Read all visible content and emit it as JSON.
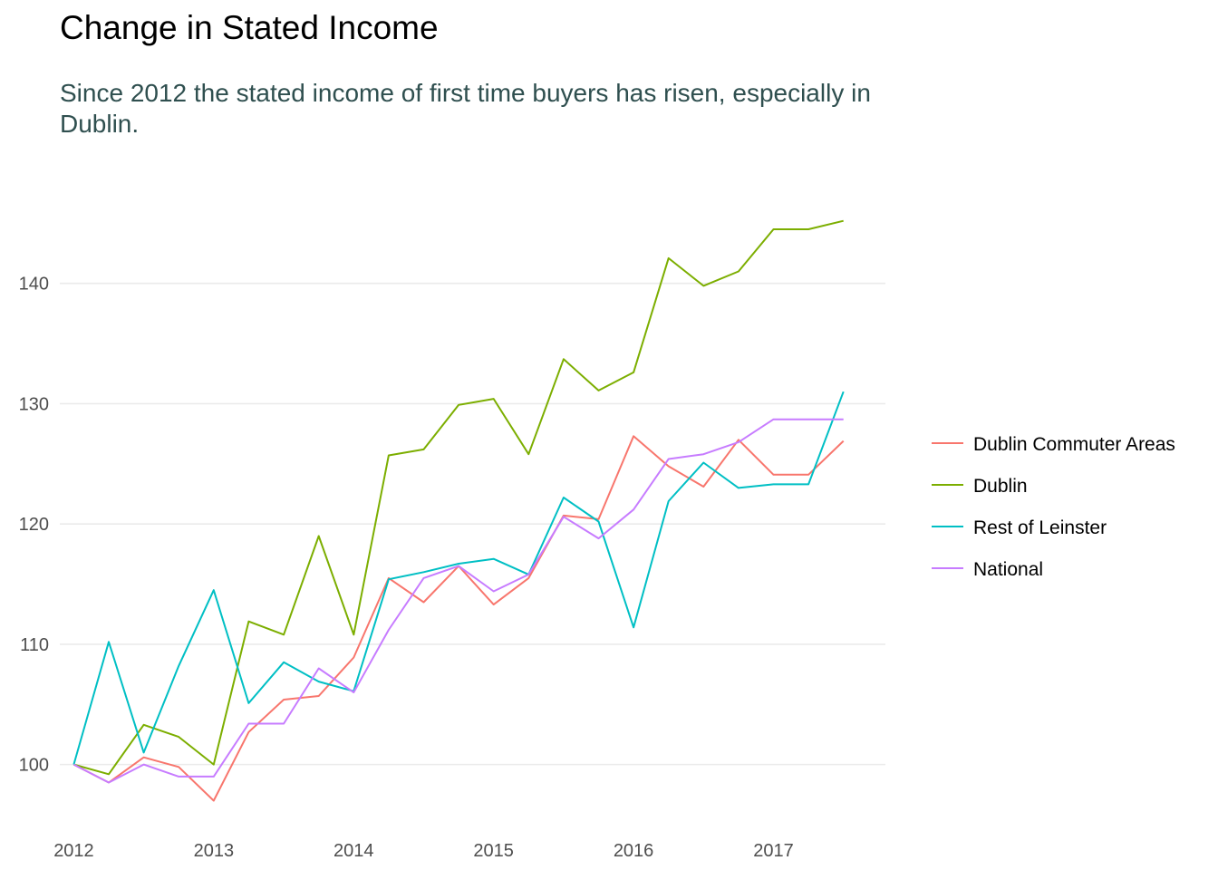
{
  "chart_data": {
    "type": "line",
    "title": "Change in Stated Income",
    "subtitle": "Since 2012 the stated income of first time buyers has risen, especially in Dublin.",
    "xlabel": "",
    "ylabel": "",
    "xlim": [
      2011.9,
      2017.8
    ],
    "ylim": [
      95,
      150
    ],
    "x_ticks": [
      2012,
      2013,
      2014,
      2015,
      2016,
      2017
    ],
    "y_ticks": [
      100,
      110,
      120,
      130,
      140
    ],
    "grid": "horizontal",
    "legend": "right",
    "x": [
      2012.0,
      2012.25,
      2012.5,
      2012.75,
      2013.0,
      2013.25,
      2013.5,
      2013.75,
      2014.0,
      2014.25,
      2014.5,
      2014.75,
      2015.0,
      2015.25,
      2015.5,
      2015.75,
      2016.0,
      2016.25,
      2016.5,
      2016.75,
      2017.0,
      2017.25,
      2017.5
    ],
    "series": [
      {
        "name": "Dublin Commuter Areas",
        "color": "#F8766D",
        "values": [
          100,
          98.5,
          100.6,
          99.8,
          97.0,
          102.7,
          105.4,
          105.7,
          108.9,
          115.5,
          113.5,
          116.5,
          113.3,
          115.5,
          120.7,
          120.4,
          127.3,
          124.8,
          123.1,
          127.0,
          124.1,
          124.1,
          126.9
        ]
      },
      {
        "name": "Dublin",
        "color": "#7CAE00",
        "values": [
          100,
          99.2,
          103.3,
          102.3,
          100.0,
          111.9,
          110.8,
          119.0,
          110.8,
          125.7,
          126.2,
          129.9,
          130.4,
          125.8,
          133.7,
          131.1,
          132.6,
          142.1,
          139.8,
          141.0,
          144.5,
          144.5,
          145.2
        ]
      },
      {
        "name": "Rest of Leinster",
        "color": "#00BFC4",
        "values": [
          100,
          110.2,
          101.0,
          108.2,
          114.5,
          105.1,
          108.5,
          106.9,
          106.1,
          115.4,
          116.0,
          116.7,
          117.1,
          115.8,
          122.2,
          120.2,
          111.4,
          121.9,
          125.1,
          123.0,
          123.3,
          123.3,
          131.0
        ]
      },
      {
        "name": "National",
        "color": "#C77CFF",
        "values": [
          100,
          98.5,
          100.0,
          99.0,
          99.0,
          103.4,
          103.4,
          108.0,
          106.0,
          111.2,
          115.5,
          116.5,
          114.4,
          115.8,
          120.6,
          118.8,
          121.2,
          125.4,
          125.8,
          126.8,
          128.7,
          128.7,
          128.7
        ]
      }
    ]
  }
}
